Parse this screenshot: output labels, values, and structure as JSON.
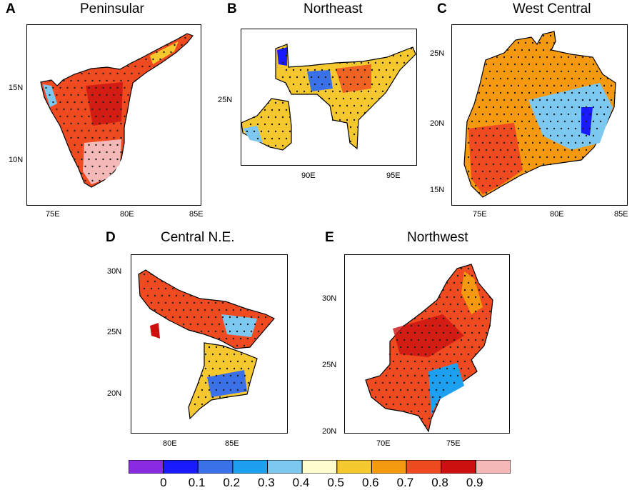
{
  "colors": {
    "scale": [
      "#8a2be2",
      "#1a1aff",
      "#3a70e8",
      "#1ea0f0",
      "#7dc8f0",
      "#fffdd0",
      "#f5c830",
      "#f59a10",
      "#f04a20",
      "#cc1010",
      "#f5b8b8"
    ],
    "border": "#000000",
    "stipple": "#202020"
  },
  "colorbar": {
    "labels": [
      "0",
      "0.1",
      "0.2",
      "0.3",
      "0.4",
      "0.5",
      "0.6",
      "0.7",
      "0.8",
      "0.9"
    ]
  },
  "panels": [
    {
      "id": "A",
      "label": "A",
      "title": "Peninsular",
      "x_ticks": [
        "75E",
        "80E",
        "85E"
      ],
      "y_ticks": [
        "15N",
        "10N"
      ]
    },
    {
      "id": "B",
      "label": "B",
      "title": "Northeast",
      "x_ticks": [
        "90E",
        "95E"
      ],
      "y_ticks": [
        "25N"
      ]
    },
    {
      "id": "C",
      "label": "C",
      "title": "West Central",
      "x_ticks": [
        "75E",
        "80E",
        "85E"
      ],
      "y_ticks": [
        "25N",
        "20N",
        "15N"
      ]
    },
    {
      "id": "D",
      "label": "D",
      "title": "Central N.E.",
      "x_ticks": [
        "80E",
        "85E"
      ],
      "y_ticks": [
        "30N",
        "25N",
        "20N"
      ]
    },
    {
      "id": "E",
      "label": "E",
      "title": "Northwest",
      "x_ticks": [
        "70E",
        "75E"
      ],
      "y_ticks": [
        "30N",
        "25N",
        "20N"
      ]
    }
  ]
}
